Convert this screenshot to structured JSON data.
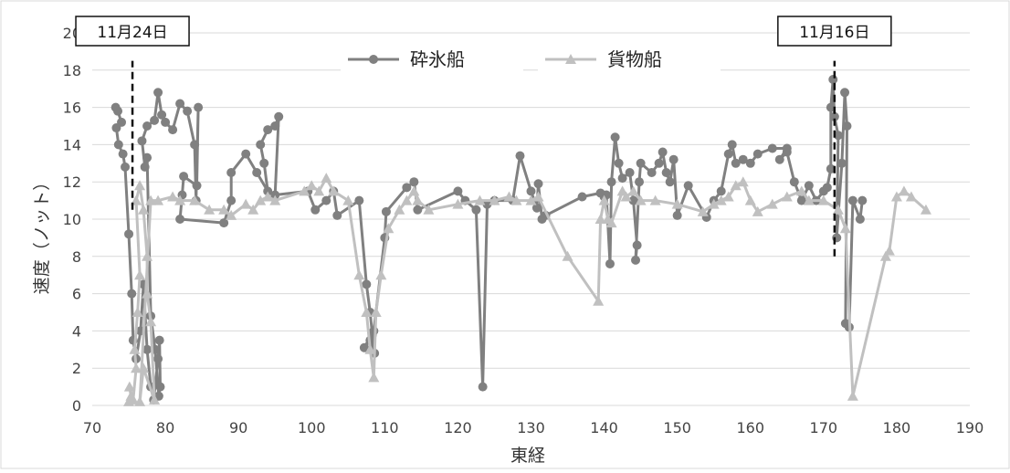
{
  "chart_data": {
    "type": "line",
    "xlabel": "東経",
    "ylabel": "速度（ノット）",
    "xlim": [
      70,
      190
    ],
    "ylim": [
      0,
      20
    ],
    "x_ticks": [
      70,
      80,
      90,
      100,
      110,
      120,
      130,
      140,
      150,
      160,
      170,
      180,
      190
    ],
    "y_ticks": [
      0,
      2,
      4,
      6,
      8,
      10,
      12,
      14,
      16,
      18,
      20
    ],
    "grid": "horizontal",
    "legend": "top-center",
    "series": [
      {
        "name": "砕氷船",
        "color": "#808080",
        "marker": "circle",
        "points": [
          [
            73.2,
            16.0
          ],
          [
            73.5,
            15.8
          ],
          [
            74.0,
            15.2
          ],
          [
            73.3,
            14.9
          ],
          [
            73.6,
            14.0
          ],
          [
            74.2,
            13.5
          ],
          [
            74.5,
            12.8
          ],
          [
            75.0,
            9.2
          ],
          [
            75.4,
            6.0
          ],
          [
            75.6,
            3.5
          ],
          [
            76.0,
            2.5
          ],
          [
            76.6,
            4.0
          ],
          [
            77.0,
            6.5
          ],
          [
            77.5,
            3.0
          ],
          [
            78.0,
            1.0
          ],
          [
            78.4,
            0.3
          ],
          [
            79.0,
            2.5
          ],
          [
            79.2,
            3.5
          ],
          [
            79.3,
            1.0
          ],
          [
            79.1,
            0.5
          ],
          [
            78.6,
            3.0
          ],
          [
            78.0,
            4.8
          ],
          [
            77.5,
            13.3
          ],
          [
            77.2,
            12.8
          ],
          [
            76.8,
            14.2
          ],
          [
            77.5,
            15.0
          ],
          [
            78.5,
            15.3
          ],
          [
            79.0,
            16.8
          ],
          [
            79.5,
            15.6
          ],
          [
            80.0,
            15.2
          ],
          [
            81.0,
            14.8
          ],
          [
            82.0,
            16.2
          ],
          [
            83.0,
            15.8
          ],
          [
            84.0,
            14.0
          ],
          [
            84.2,
            11.0
          ],
          [
            84.5,
            16.0
          ],
          [
            84.3,
            11.8
          ],
          [
            82.5,
            12.3
          ],
          [
            82.3,
            11.3
          ],
          [
            82.0,
            10.0
          ],
          [
            88.0,
            9.8
          ],
          [
            89.0,
            11.0
          ],
          [
            89.0,
            12.5
          ],
          [
            91.0,
            13.5
          ],
          [
            92.5,
            12.5
          ],
          [
            94.0,
            11.5
          ],
          [
            93.5,
            13.0
          ],
          [
            93.0,
            14.0
          ],
          [
            94.0,
            14.8
          ],
          [
            95.0,
            15.0
          ],
          [
            95.5,
            15.5
          ],
          [
            95.0,
            11.3
          ],
          [
            99.5,
            11.5
          ],
          [
            100.5,
            10.5
          ],
          [
            102.0,
            11.0
          ],
          [
            103.0,
            11.5
          ],
          [
            103.5,
            10.2
          ],
          [
            106.5,
            11.0
          ],
          [
            107.5,
            6.5
          ],
          [
            108.0,
            5.0
          ],
          [
            108.3,
            3.8
          ],
          [
            108.6,
            2.8
          ],
          [
            108.0,
            3.5
          ],
          [
            107.2,
            3.1
          ],
          [
            108.5,
            4.0
          ],
          [
            110.0,
            9.0
          ],
          [
            110.2,
            10.4
          ],
          [
            113.0,
            11.7
          ],
          [
            114.0,
            12.0
          ],
          [
            114.5,
            10.5
          ],
          [
            120.0,
            11.5
          ],
          [
            121.0,
            11.0
          ],
          [
            122.5,
            10.5
          ],
          [
            123.4,
            1.0
          ],
          [
            124.0,
            10.8
          ],
          [
            125.0,
            11.0
          ],
          [
            127.5,
            11.0
          ],
          [
            128.5,
            13.4
          ],
          [
            130.0,
            11.5
          ],
          [
            130.8,
            10.6
          ],
          [
            131.0,
            11.9
          ],
          [
            131.5,
            10.0
          ],
          [
            132.0,
            10.2
          ],
          [
            137.0,
            11.2
          ],
          [
            139.5,
            11.4
          ],
          [
            140.0,
            11.2
          ],
          [
            140.3,
            11.3
          ],
          [
            140.8,
            7.6
          ],
          [
            141.0,
            12.0
          ],
          [
            141.5,
            14.4
          ],
          [
            142.0,
            13.0
          ],
          [
            142.5,
            12.2
          ],
          [
            143.5,
            12.5
          ],
          [
            144.0,
            11.0
          ],
          [
            144.5,
            8.6
          ],
          [
            144.3,
            7.8
          ],
          [
            144.8,
            12.0
          ],
          [
            145.0,
            13.0
          ],
          [
            146.5,
            12.5
          ],
          [
            147.5,
            13.0
          ],
          [
            148.0,
            13.6
          ],
          [
            148.5,
            12.5
          ],
          [
            149.0,
            12.0
          ],
          [
            149.5,
            13.2
          ],
          [
            150.0,
            10.2
          ],
          [
            151.5,
            11.8
          ],
          [
            154.0,
            10.1
          ],
          [
            155.0,
            11.0
          ],
          [
            156.0,
            11.5
          ],
          [
            157.0,
            13.5
          ],
          [
            157.5,
            14.0
          ],
          [
            158.0,
            13.0
          ],
          [
            159.0,
            13.2
          ],
          [
            160.0,
            13.0
          ],
          [
            161.0,
            13.5
          ],
          [
            163.0,
            13.8
          ],
          [
            165.0,
            13.8
          ],
          [
            164.0,
            13.2
          ],
          [
            165.0,
            13.6
          ],
          [
            166.0,
            12.0
          ],
          [
            167.0,
            11.0
          ],
          [
            168.0,
            11.8
          ],
          [
            169.0,
            11.0
          ],
          [
            170.0,
            11.5
          ],
          [
            170.5,
            11.7
          ],
          [
            171.0,
            12.7
          ],
          [
            171.0,
            16.0
          ],
          [
            171.3,
            17.5
          ],
          [
            171.5,
            15.5
          ],
          [
            172.0,
            14.5
          ],
          [
            171.8,
            9.0
          ],
          [
            172.5,
            13.0
          ],
          [
            172.9,
            16.8
          ],
          [
            173.2,
            15.0
          ],
          [
            173.0,
            4.4
          ],
          [
            173.5,
            4.2
          ],
          [
            174.0,
            11.0
          ],
          [
            175.0,
            10.0
          ],
          [
            175.3,
            11.0
          ]
        ]
      },
      {
        "name": "貨物船",
        "color": "#c0c0c0",
        "marker": "triangle",
        "points": [
          [
            75.0,
            0.2
          ],
          [
            75.3,
            0.5
          ],
          [
            75.1,
            1.0
          ],
          [
            75.6,
            0.3
          ],
          [
            76.0,
            2.0
          ],
          [
            75.8,
            3.0
          ],
          [
            76.2,
            5.0
          ],
          [
            76.5,
            7.0
          ],
          [
            76.0,
            11.0
          ],
          [
            76.5,
            11.8
          ],
          [
            77.0,
            10.5
          ],
          [
            77.5,
            8.0
          ],
          [
            77.5,
            6.0
          ],
          [
            78.0,
            4.5
          ],
          [
            78.5,
            0.3
          ],
          [
            77.0,
            2.0
          ],
          [
            76.5,
            0.2
          ],
          [
            78.0,
            11.0
          ],
          [
            79.0,
            11.0
          ],
          [
            81.0,
            11.2
          ],
          [
            82.0,
            11.0
          ],
          [
            84.0,
            11.0
          ],
          [
            86.0,
            10.5
          ],
          [
            88.0,
            10.5
          ],
          [
            89.0,
            10.2
          ],
          [
            91.0,
            10.8
          ],
          [
            92.0,
            10.5
          ],
          [
            93.0,
            11.0
          ],
          [
            94.0,
            11.2
          ],
          [
            95.0,
            11.0
          ],
          [
            99.0,
            11.5
          ],
          [
            100.0,
            11.8
          ],
          [
            101.0,
            11.5
          ],
          [
            102.0,
            12.2
          ],
          [
            103.0,
            11.5
          ],
          [
            105.0,
            11.0
          ],
          [
            106.5,
            7.0
          ],
          [
            107.5,
            5.0
          ],
          [
            108.0,
            3.0
          ],
          [
            108.5,
            1.5
          ],
          [
            108.8,
            5.0
          ],
          [
            109.5,
            7.0
          ],
          [
            110.5,
            9.5
          ],
          [
            112.0,
            10.5
          ],
          [
            113.0,
            11.0
          ],
          [
            114.0,
            11.5
          ],
          [
            114.5,
            11.0
          ],
          [
            116.0,
            10.5
          ],
          [
            120.0,
            10.8
          ],
          [
            123.0,
            11.0
          ],
          [
            125.0,
            11.0
          ],
          [
            127.0,
            11.2
          ],
          [
            128.0,
            11.0
          ],
          [
            130.0,
            11.0
          ],
          [
            131.0,
            11.2
          ],
          [
            135.0,
            8.0
          ],
          [
            139.2,
            5.6
          ],
          [
            139.5,
            10.0
          ],
          [
            140.0,
            11.0
          ],
          [
            140.5,
            10.0
          ],
          [
            141.0,
            9.8
          ],
          [
            142.5,
            11.5
          ],
          [
            143.0,
            11.2
          ],
          [
            144.0,
            11.5
          ],
          [
            145.0,
            11.0
          ],
          [
            147.0,
            11.0
          ],
          [
            150.0,
            10.8
          ],
          [
            153.5,
            10.4
          ],
          [
            155.0,
            10.8
          ],
          [
            156.0,
            11.0
          ],
          [
            157.0,
            11.2
          ],
          [
            158.0,
            11.8
          ],
          [
            159.0,
            12.0
          ],
          [
            160.0,
            11.0
          ],
          [
            161.0,
            10.4
          ],
          [
            163.0,
            10.8
          ],
          [
            165.0,
            11.2
          ],
          [
            167.0,
            11.5
          ],
          [
            168.0,
            11.0
          ],
          [
            170.0,
            11.0
          ],
          [
            172.0,
            10.5
          ],
          [
            173.0,
            9.5
          ],
          [
            174.0,
            0.5
          ],
          [
            178.5,
            8.0
          ],
          [
            179.0,
            8.3
          ],
          [
            180.0,
            11.2
          ],
          [
            181.0,
            11.5
          ],
          [
            182.0,
            11.2
          ],
          [
            184.0,
            10.5
          ]
        ]
      }
    ],
    "annotations": [
      {
        "label": "11月24日",
        "x": 75.5,
        "y_from": 10.5,
        "y_to": 18.5
      },
      {
        "label": "11月16日",
        "x": 171.5,
        "y_from": 8.0,
        "y_to": 18.5
      }
    ]
  }
}
